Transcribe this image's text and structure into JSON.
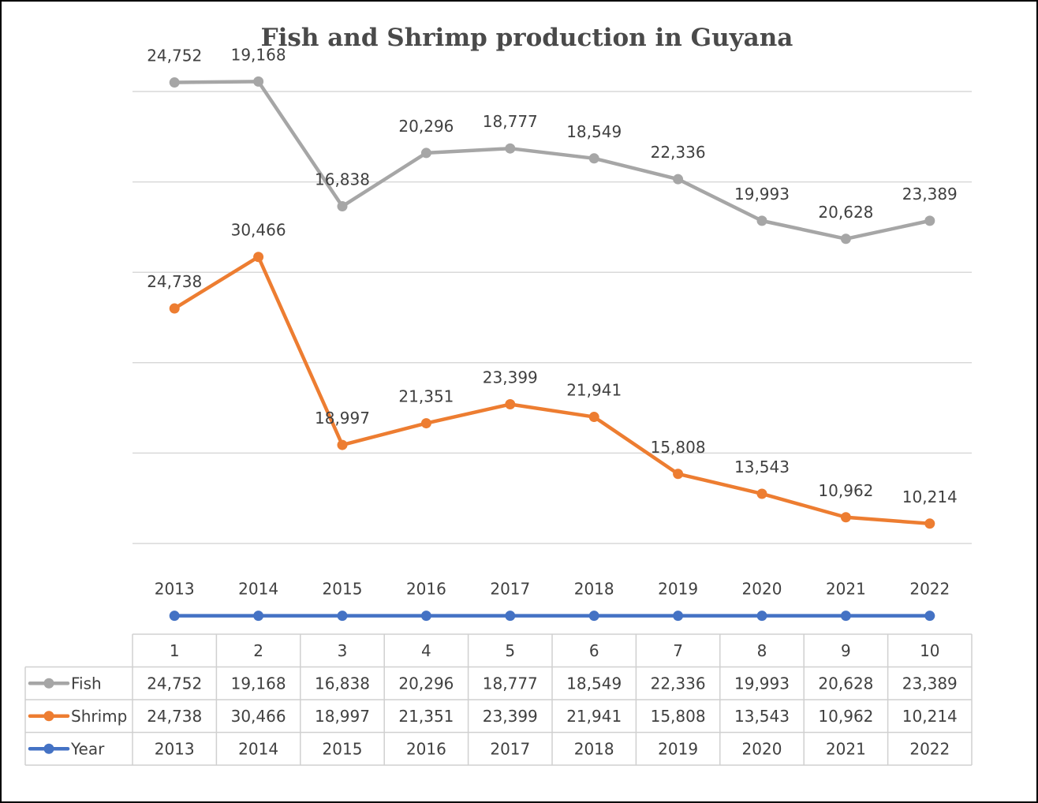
{
  "chart_data": {
    "type": "line",
    "title": "Fish and Shrimp production in Guyana",
    "categories": [
      "1",
      "2",
      "3",
      "4",
      "5",
      "6",
      "7",
      "8",
      "9",
      "10"
    ],
    "x_labels": [
      "2013",
      "2014",
      "2015",
      "2016",
      "2017",
      "2018",
      "2019",
      "2020",
      "2021",
      "2022"
    ],
    "series": [
      {
        "name": "Fish",
        "color": "#a6a6a6",
        "values": [
          24752,
          19168,
          16838,
          20296,
          18777,
          18549,
          22336,
          19993,
          20628,
          23389
        ],
        "labels": [
          "24,752",
          "19,168",
          "16,838",
          "20,296",
          "18,777",
          "18,549",
          "22,336",
          "19,993",
          "20,628",
          "23,389"
        ],
        "plotted_levels": [
          5.1,
          5.11,
          3.73,
          4.32,
          4.37,
          4.26,
          4.03,
          3.57,
          3.37,
          3.57
        ]
      },
      {
        "name": "Shrimp",
        "color": "#ed7d31",
        "values": [
          24738,
          30466,
          18997,
          21351,
          23399,
          21941,
          15808,
          13543,
          10962,
          10214
        ],
        "labels": [
          "24,738",
          "30,466",
          "18,997",
          "21,351",
          "23,399",
          "21,941",
          "15,808",
          "13,543",
          "10,962",
          "10,214"
        ],
        "plotted_levels": [
          2.6,
          3.17,
          1.09,
          1.33,
          1.54,
          1.4,
          0.77,
          0.55,
          0.29,
          0.22
        ]
      },
      {
        "name": "Year",
        "color": "#4472c4",
        "values": [
          2013,
          2014,
          2015,
          2016,
          2017,
          2018,
          2019,
          2020,
          2021,
          2022
        ],
        "labels": [
          "2013",
          "2014",
          "2015",
          "2016",
          "2017",
          "2018",
          "2019",
          "2020",
          "2021",
          "2022"
        ],
        "plotted_levels": [
          -0.8,
          -0.8,
          -0.8,
          -0.8,
          -0.8,
          -0.8,
          -0.8,
          -0.8,
          -0.8,
          -0.8
        ]
      }
    ],
    "ylim": [
      -1.1,
      5.0
    ],
    "grid_levels": [
      0,
      1,
      2,
      3,
      4,
      5
    ],
    "grid": true,
    "xlabel": "",
    "ylabel": "",
    "legend": "data-table-left",
    "data_table": {
      "header": [
        "1",
        "2",
        "3",
        "4",
        "5",
        "6",
        "7",
        "8",
        "9",
        "10"
      ],
      "rows": [
        {
          "name": "Fish",
          "cells": [
            "24,752",
            "19,168",
            "16,838",
            "20,296",
            "18,777",
            "18,549",
            "22,336",
            "19,993",
            "20,628",
            "23,389"
          ]
        },
        {
          "name": "Shrimp",
          "cells": [
            "24,738",
            "30,466",
            "18,997",
            "21,351",
            "23,399",
            "21,941",
            "15,808",
            "13,543",
            "10,962",
            "10,214"
          ]
        },
        {
          "name": "Year",
          "cells": [
            "2013",
            "2014",
            "2015",
            "2016",
            "2017",
            "2018",
            "2019",
            "2020",
            "2021",
            "2022"
          ]
        }
      ]
    }
  }
}
